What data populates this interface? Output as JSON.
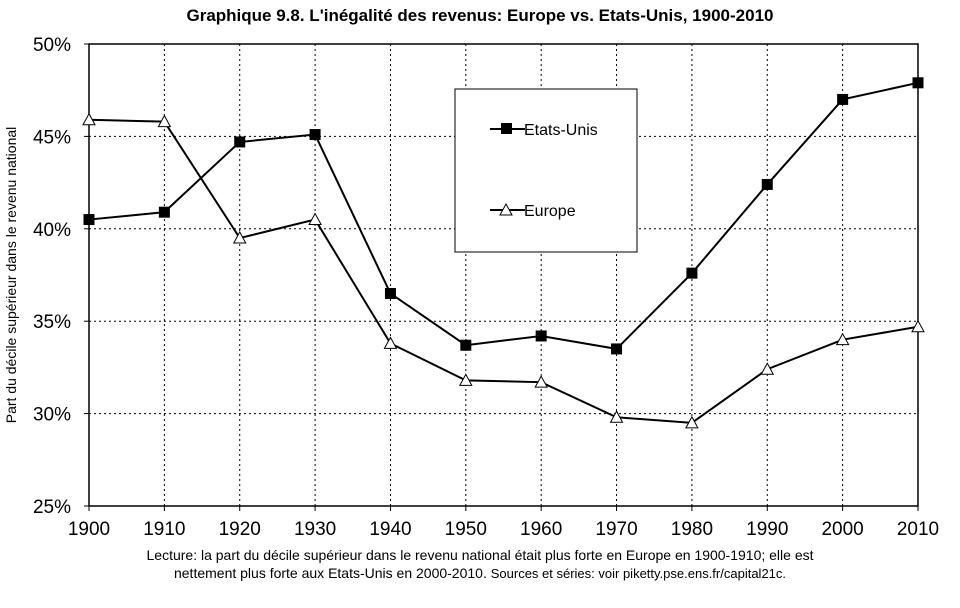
{
  "chart_data": {
    "type": "line",
    "title": "Graphique 9.8. L'inégalité des revenus: Europe vs. Etats-Unis, 1900-2010",
    "xlabel": "",
    "ylabel": "Part du décile supérieur dans le revenu national",
    "x": [
      1900,
      1910,
      1920,
      1930,
      1940,
      1950,
      1960,
      1970,
      1980,
      1990,
      2000,
      2010
    ],
    "xlim": [
      1900,
      2010
    ],
    "ylim": [
      25,
      50
    ],
    "yticks": [
      25,
      30,
      35,
      40,
      45,
      50
    ],
    "ytick_labels": [
      "25%",
      "30%",
      "35%",
      "40%",
      "45%",
      "50%"
    ],
    "xtick_labels": [
      "1900",
      "1910",
      "1920",
      "1930",
      "1940",
      "1950",
      "1960",
      "1970",
      "1980",
      "1990",
      "2000",
      "2010"
    ],
    "grid": "horizontal and vertical dotted",
    "legend_placement": "top-center",
    "series": [
      {
        "name": "Etats-Unis",
        "marker": "filled-square",
        "values": [
          40.5,
          40.9,
          44.7,
          45.1,
          36.5,
          33.7,
          34.2,
          33.5,
          37.6,
          42.4,
          47.0,
          47.9
        ]
      },
      {
        "name": "Europe",
        "marker": "open-triangle",
        "values": [
          45.9,
          45.8,
          39.5,
          40.5,
          33.8,
          31.8,
          31.7,
          29.8,
          29.5,
          32.4,
          34.0,
          34.7
        ]
      }
    ]
  },
  "caption": {
    "line1": "Lecture: la part du décile supérieur dans le revenu national était plus forte en Europe en 1900-1910; elle est",
    "line2a": "nettement plus forte aux Etats-Unis en 2000-2010.",
    "line2b": "Sources et séries: voir piketty.pse.ens.fr/capital21c."
  }
}
